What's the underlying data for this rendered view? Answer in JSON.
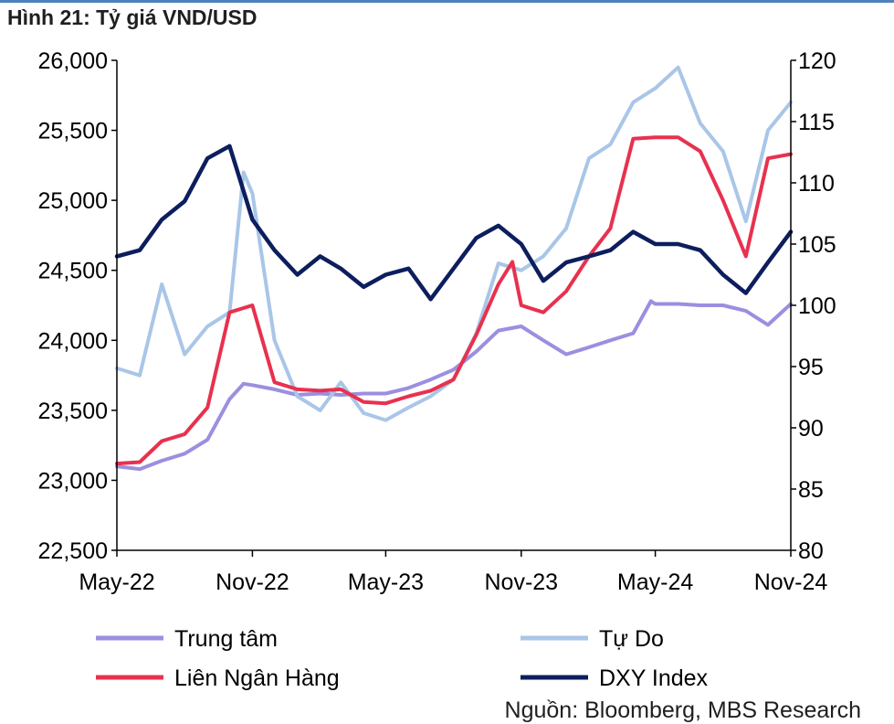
{
  "figure": {
    "title": "Hình 21: Tỷ giá VND/USD",
    "source": "Nguồn: Bloomberg, MBS Research"
  },
  "chart_data": {
    "type": "line",
    "title": "",
    "x_ticks": [
      "May-22",
      "Nov-22",
      "May-23",
      "Nov-23",
      "May-24",
      "Nov-24"
    ],
    "x_tick_dates": [
      "2022-05",
      "2022-11",
      "2023-05",
      "2023-11",
      "2024-05",
      "2024-11"
    ],
    "y_left": {
      "lim": [
        22500,
        26000
      ],
      "ticks": [
        "22,500",
        "23,000",
        "23,500",
        "24,000",
        "24,500",
        "25,000",
        "25,500",
        "26,000"
      ]
    },
    "y_right": {
      "lim": [
        80,
        120
      ],
      "ticks": [
        "80",
        "85",
        "90",
        "95",
        "100",
        "105",
        "110",
        "115",
        "120"
      ]
    },
    "grid": false,
    "legend_position": "bottom",
    "series": [
      {
        "name": "Trung tâm",
        "axis": "left",
        "color": "#9b8fe0",
        "points": [
          [
            "2022-05",
            23100
          ],
          [
            "2022-06",
            23080
          ],
          [
            "2022-07",
            23140
          ],
          [
            "2022-08",
            23190
          ],
          [
            "2022-09",
            23290
          ],
          [
            "2022-10",
            23580
          ],
          [
            "2022-10-20",
            23690
          ],
          [
            "2022-11",
            23680
          ],
          [
            "2022-12",
            23650
          ],
          [
            "2023-01",
            23610
          ],
          [
            "2023-02",
            23620
          ],
          [
            "2023-03",
            23610
          ],
          [
            "2023-04",
            23620
          ],
          [
            "2023-05",
            23620
          ],
          [
            "2023-06",
            23660
          ],
          [
            "2023-07",
            23720
          ],
          [
            "2023-08",
            23790
          ],
          [
            "2023-09",
            23920
          ],
          [
            "2023-10",
            24070
          ],
          [
            "2023-11",
            24100
          ],
          [
            "2023-12",
            24000
          ],
          [
            "2024-01",
            23900
          ],
          [
            "2024-02",
            23950
          ],
          [
            "2024-03",
            24000
          ],
          [
            "2024-04",
            24050
          ],
          [
            "2024-04-25",
            24280
          ],
          [
            "2024-05",
            24260
          ],
          [
            "2024-06",
            24260
          ],
          [
            "2024-07",
            24250
          ],
          [
            "2024-08",
            24250
          ],
          [
            "2024-09",
            24210
          ],
          [
            "2024-10",
            24110
          ],
          [
            "2024-11",
            24260
          ]
        ]
      },
      {
        "name": "Tự Do",
        "axis": "left",
        "color": "#a9c6e8",
        "points": [
          [
            "2022-05",
            23800
          ],
          [
            "2022-06",
            23750
          ],
          [
            "2022-07",
            24400
          ],
          [
            "2022-08",
            23900
          ],
          [
            "2022-09",
            24100
          ],
          [
            "2022-10",
            24200
          ],
          [
            "2022-10-20",
            25200
          ],
          [
            "2022-11",
            25050
          ],
          [
            "2022-12",
            24000
          ],
          [
            "2023-01",
            23600
          ],
          [
            "2023-02",
            23500
          ],
          [
            "2023-03",
            23700
          ],
          [
            "2023-04",
            23480
          ],
          [
            "2023-05",
            23430
          ],
          [
            "2023-06",
            23520
          ],
          [
            "2023-07",
            23600
          ],
          [
            "2023-08",
            23720
          ],
          [
            "2023-09",
            24050
          ],
          [
            "2023-10",
            24550
          ],
          [
            "2023-11",
            24500
          ],
          [
            "2023-12",
            24600
          ],
          [
            "2024-01",
            24800
          ],
          [
            "2024-02",
            25300
          ],
          [
            "2024-03",
            25400
          ],
          [
            "2024-04",
            25700
          ],
          [
            "2024-05",
            25800
          ],
          [
            "2024-06",
            25950
          ],
          [
            "2024-07",
            25550
          ],
          [
            "2024-08",
            25350
          ],
          [
            "2024-09",
            24850
          ],
          [
            "2024-10",
            25500
          ],
          [
            "2024-11",
            25700
          ]
        ]
      },
      {
        "name": "Liên Ngân Hàng",
        "axis": "left",
        "color": "#e8314f",
        "points": [
          [
            "2022-05",
            23120
          ],
          [
            "2022-06",
            23130
          ],
          [
            "2022-07",
            23280
          ],
          [
            "2022-08",
            23330
          ],
          [
            "2022-09",
            23520
          ],
          [
            "2022-10",
            24200
          ],
          [
            "2022-11",
            24250
          ],
          [
            "2022-12",
            23700
          ],
          [
            "2023-01",
            23650
          ],
          [
            "2023-02",
            23640
          ],
          [
            "2023-03",
            23650
          ],
          [
            "2023-04",
            23560
          ],
          [
            "2023-05",
            23550
          ],
          [
            "2023-06",
            23600
          ],
          [
            "2023-07",
            23640
          ],
          [
            "2023-08",
            23720
          ],
          [
            "2023-09",
            24040
          ],
          [
            "2023-10",
            24400
          ],
          [
            "2023-10-20",
            24560
          ],
          [
            "2023-11",
            24250
          ],
          [
            "2023-12",
            24200
          ],
          [
            "2024-01",
            24350
          ],
          [
            "2024-02",
            24600
          ],
          [
            "2024-03",
            24800
          ],
          [
            "2024-04",
            25440
          ],
          [
            "2024-05",
            25450
          ],
          [
            "2024-06",
            25450
          ],
          [
            "2024-07",
            25350
          ],
          [
            "2024-08",
            25000
          ],
          [
            "2024-09",
            24600
          ],
          [
            "2024-10",
            25300
          ],
          [
            "2024-11",
            25330
          ]
        ]
      },
      {
        "name": "DXY Index",
        "axis": "right",
        "color": "#0d1e5e",
        "points": [
          [
            "2022-05",
            104
          ],
          [
            "2022-06",
            104.5
          ],
          [
            "2022-07",
            107
          ],
          [
            "2022-08",
            108.5
          ],
          [
            "2022-09",
            112
          ],
          [
            "2022-10",
            113
          ],
          [
            "2022-11",
            107
          ],
          [
            "2022-12",
            104.5
          ],
          [
            "2023-01",
            102.5
          ],
          [
            "2023-02",
            104
          ],
          [
            "2023-03",
            103
          ],
          [
            "2023-04",
            101.5
          ],
          [
            "2023-05",
            102.5
          ],
          [
            "2023-06",
            103
          ],
          [
            "2023-07",
            100.5
          ],
          [
            "2023-08",
            103
          ],
          [
            "2023-09",
            105.5
          ],
          [
            "2023-10",
            106.5
          ],
          [
            "2023-11",
            105
          ],
          [
            "2023-12",
            102
          ],
          [
            "2024-01",
            103.5
          ],
          [
            "2024-02",
            104
          ],
          [
            "2024-03",
            104.5
          ],
          [
            "2024-04",
            106
          ],
          [
            "2024-05",
            105
          ],
          [
            "2024-06",
            105
          ],
          [
            "2024-07",
            104.5
          ],
          [
            "2024-08",
            102.5
          ],
          [
            "2024-09",
            101
          ],
          [
            "2024-10",
            103.5
          ],
          [
            "2024-11",
            106
          ]
        ]
      }
    ]
  },
  "colors": {
    "title_rule": "#4f81bd",
    "axis": "#000000"
  }
}
